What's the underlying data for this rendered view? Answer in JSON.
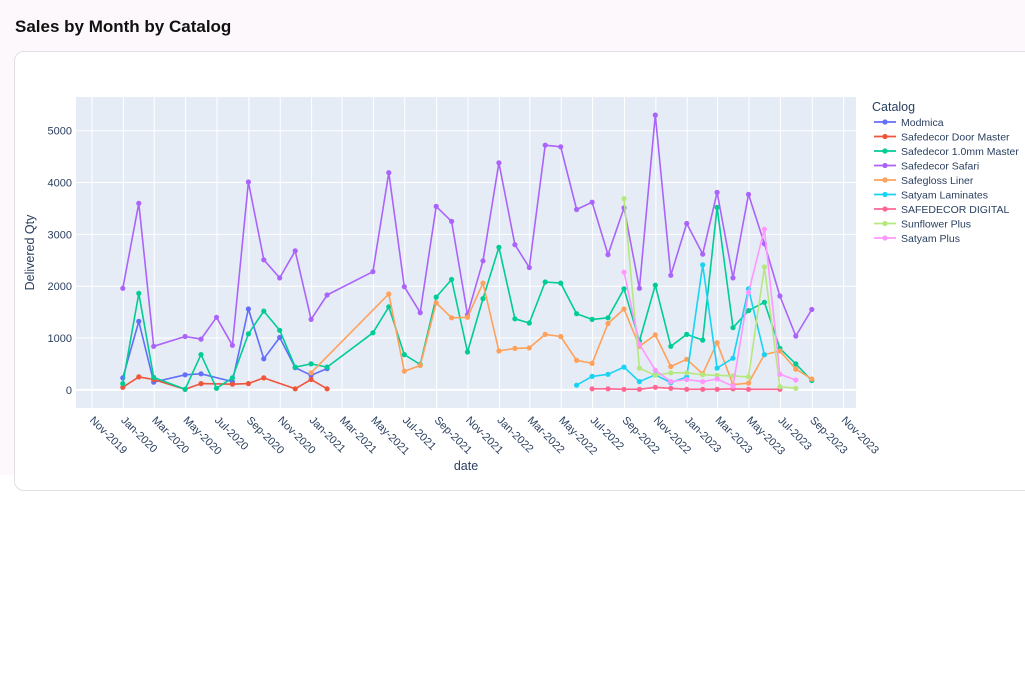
{
  "page": {
    "title": "Sales by Month by Catalog"
  },
  "chart_data": {
    "type": "line",
    "title": "",
    "xlabel": "date",
    "ylabel": "Delivered Qty",
    "xlim": [
      "2019-10-01",
      "2023-11-25"
    ],
    "ylim": [
      -350,
      5650
    ],
    "yticks": [
      0,
      1000,
      2000,
      3000,
      4000,
      5000
    ],
    "xticks": [
      {
        "date": "2019-11-01",
        "label": "Nov-2019"
      },
      {
        "date": "2020-01-01",
        "label": "Jan-2020"
      },
      {
        "date": "2020-03-01",
        "label": "Mar-2020"
      },
      {
        "date": "2020-05-01",
        "label": "May-2020"
      },
      {
        "date": "2020-07-01",
        "label": "Jul-2020"
      },
      {
        "date": "2020-09-01",
        "label": "Sep-2020"
      },
      {
        "date": "2020-11-01",
        "label": "Nov-2020"
      },
      {
        "date": "2021-01-01",
        "label": "Jan-2021"
      },
      {
        "date": "2021-03-01",
        "label": "Mar-2021"
      },
      {
        "date": "2021-05-01",
        "label": "May-2021"
      },
      {
        "date": "2021-07-01",
        "label": "Jul-2021"
      },
      {
        "date": "2021-09-01",
        "label": "Sep-2021"
      },
      {
        "date": "2021-11-01",
        "label": "Nov-2021"
      },
      {
        "date": "2022-01-01",
        "label": "Jan-2022"
      },
      {
        "date": "2022-03-01",
        "label": "Mar-2022"
      },
      {
        "date": "2022-05-01",
        "label": "May-2022"
      },
      {
        "date": "2022-07-01",
        "label": "Jul-2022"
      },
      {
        "date": "2022-09-01",
        "label": "Sep-2022"
      },
      {
        "date": "2022-11-01",
        "label": "Nov-2022"
      },
      {
        "date": "2023-01-01",
        "label": "Jan-2023"
      },
      {
        "date": "2023-03-01",
        "label": "Mar-2023"
      },
      {
        "date": "2023-05-01",
        "label": "May-2023"
      },
      {
        "date": "2023-07-01",
        "label": "Jul-2023"
      },
      {
        "date": "2023-09-01",
        "label": "Sep-2023"
      },
      {
        "date": "2023-11-01",
        "label": "Nov-2023"
      }
    ],
    "grid": true,
    "legend_title": "Catalog",
    "legend_position": "right",
    "series": [
      {
        "name": "Modmica",
        "color": "#636efa",
        "points": [
          [
            "2019-12-31",
            230
          ],
          [
            "2020-01-31",
            1320
          ],
          [
            "2020-02-29",
            150
          ],
          [
            "2020-04-30",
            290
          ],
          [
            "2020-05-31",
            310
          ],
          [
            "2020-07-31",
            160
          ],
          [
            "2020-08-31",
            1560
          ],
          [
            "2020-09-30",
            600
          ],
          [
            "2020-10-31",
            1010
          ],
          [
            "2020-11-30",
            430
          ],
          [
            "2020-12-31",
            280
          ],
          [
            "2021-01-31",
            410
          ]
        ]
      },
      {
        "name": "Safedecor Door Master",
        "color": "#EF553B",
        "points": [
          [
            "2019-12-31",
            50
          ],
          [
            "2020-01-31",
            250
          ],
          [
            "2020-02-29",
            200
          ],
          [
            "2020-04-30",
            10
          ],
          [
            "2020-05-31",
            120
          ],
          [
            "2020-07-31",
            110
          ],
          [
            "2020-08-31",
            120
          ],
          [
            "2020-09-30",
            230
          ],
          [
            "2020-11-30",
            20
          ],
          [
            "2020-12-31",
            200
          ],
          [
            "2021-01-31",
            20
          ]
        ]
      },
      {
        "name": "Safedecor 1.0mm Master",
        "color": "#00cc96",
        "points": [
          [
            "2019-12-31",
            120
          ],
          [
            "2020-01-31",
            1860
          ],
          [
            "2020-02-29",
            240
          ],
          [
            "2020-04-30",
            10
          ],
          [
            "2020-05-31",
            680
          ],
          [
            "2020-06-30",
            30
          ],
          [
            "2020-07-31",
            230
          ],
          [
            "2020-08-31",
            1080
          ],
          [
            "2020-09-30",
            1520
          ],
          [
            "2020-10-31",
            1150
          ],
          [
            "2020-11-30",
            440
          ],
          [
            "2020-12-31",
            500
          ],
          [
            "2021-01-31",
            440
          ],
          [
            "2021-04-30",
            1100
          ],
          [
            "2021-05-31",
            1600
          ],
          [
            "2021-06-30",
            680
          ],
          [
            "2021-07-31",
            490
          ],
          [
            "2021-08-31",
            1790
          ],
          [
            "2021-09-30",
            2130
          ],
          [
            "2021-10-31",
            730
          ],
          [
            "2021-11-30",
            1760
          ],
          [
            "2021-12-31",
            2750
          ],
          [
            "2022-01-31",
            1370
          ],
          [
            "2022-02-28",
            1290
          ],
          [
            "2022-03-31",
            2080
          ],
          [
            "2022-04-30",
            2060
          ],
          [
            "2022-05-31",
            1470
          ],
          [
            "2022-06-30",
            1360
          ],
          [
            "2022-07-31",
            1390
          ],
          [
            "2022-08-31",
            1950
          ],
          [
            "2022-09-30",
            940
          ],
          [
            "2022-10-31",
            2020
          ],
          [
            "2022-11-30",
            840
          ],
          [
            "2022-12-31",
            1070
          ],
          [
            "2023-01-31",
            960
          ],
          [
            "2023-02-28",
            3520
          ],
          [
            "2023-03-31",
            1200
          ],
          [
            "2023-04-30",
            1530
          ],
          [
            "2023-05-31",
            1690
          ],
          [
            "2023-06-30",
            800
          ],
          [
            "2023-07-31",
            500
          ],
          [
            "2023-08-31",
            180
          ]
        ]
      },
      {
        "name": "Safedecor Safari",
        "color": "#ab63fa",
        "points": [
          [
            "2019-12-31",
            1960
          ],
          [
            "2020-01-31",
            3600
          ],
          [
            "2020-02-29",
            840
          ],
          [
            "2020-04-30",
            1030
          ],
          [
            "2020-05-31",
            980
          ],
          [
            "2020-06-30",
            1400
          ],
          [
            "2020-07-31",
            860
          ],
          [
            "2020-08-31",
            4010
          ],
          [
            "2020-09-30",
            2510
          ],
          [
            "2020-10-31",
            2160
          ],
          [
            "2020-11-30",
            2680
          ],
          [
            "2020-12-31",
            1360
          ],
          [
            "2021-01-31",
            1830
          ],
          [
            "2021-04-30",
            2280
          ],
          [
            "2021-05-31",
            4190
          ],
          [
            "2021-06-30",
            1990
          ],
          [
            "2021-07-31",
            1490
          ],
          [
            "2021-08-31",
            3540
          ],
          [
            "2021-09-30",
            3250
          ],
          [
            "2021-10-31",
            1450
          ],
          [
            "2021-11-30",
            2490
          ],
          [
            "2021-12-31",
            4380
          ],
          [
            "2022-01-31",
            2800
          ],
          [
            "2022-02-28",
            2360
          ],
          [
            "2022-03-31",
            4720
          ],
          [
            "2022-04-30",
            4690
          ],
          [
            "2022-05-31",
            3480
          ],
          [
            "2022-06-30",
            3620
          ],
          [
            "2022-07-31",
            2610
          ],
          [
            "2022-08-31",
            3510
          ],
          [
            "2022-09-30",
            1960
          ],
          [
            "2022-10-31",
            5300
          ],
          [
            "2022-11-30",
            2210
          ],
          [
            "2022-12-31",
            3210
          ],
          [
            "2023-01-31",
            2620
          ],
          [
            "2023-02-28",
            3810
          ],
          [
            "2023-03-31",
            2160
          ],
          [
            "2023-04-30",
            3770
          ],
          [
            "2023-05-31",
            2820
          ],
          [
            "2023-06-30",
            1810
          ],
          [
            "2023-07-31",
            1040
          ],
          [
            "2023-08-31",
            1550
          ]
        ]
      },
      {
        "name": "Safegloss Liner",
        "color": "#FFA15A",
        "points": [
          [
            "2020-12-31",
            330
          ],
          [
            "2021-05-31",
            1850
          ],
          [
            "2021-06-30",
            360
          ],
          [
            "2021-07-31",
            470
          ],
          [
            "2021-08-31",
            1680
          ],
          [
            "2021-09-30",
            1390
          ],
          [
            "2021-10-31",
            1400
          ],
          [
            "2021-11-30",
            2060
          ],
          [
            "2021-12-31",
            750
          ],
          [
            "2022-01-31",
            800
          ],
          [
            "2022-02-28",
            810
          ],
          [
            "2022-03-31",
            1070
          ],
          [
            "2022-04-30",
            1030
          ],
          [
            "2022-05-31",
            570
          ],
          [
            "2022-06-30",
            510
          ],
          [
            "2022-07-31",
            1280
          ],
          [
            "2022-08-31",
            1560
          ],
          [
            "2022-09-30",
            840
          ],
          [
            "2022-10-31",
            1060
          ],
          [
            "2022-11-30",
            450
          ],
          [
            "2022-12-31",
            590
          ],
          [
            "2023-01-31",
            310
          ],
          [
            "2023-02-28",
            910
          ],
          [
            "2023-03-31",
            100
          ],
          [
            "2023-04-30",
            130
          ],
          [
            "2023-05-31",
            680
          ],
          [
            "2023-06-30",
            750
          ],
          [
            "2023-07-31",
            400
          ],
          [
            "2023-08-31",
            210
          ]
        ]
      },
      {
        "name": "Satyam Laminates",
        "color": "#19d3f3",
        "points": [
          [
            "2022-05-31",
            90
          ],
          [
            "2022-06-30",
            260
          ],
          [
            "2022-07-31",
            300
          ],
          [
            "2022-08-31",
            440
          ],
          [
            "2022-09-30",
            160
          ],
          [
            "2022-10-31",
            290
          ],
          [
            "2022-11-30",
            140
          ],
          [
            "2022-12-31",
            250
          ],
          [
            "2023-01-31",
            2410
          ],
          [
            "2023-02-28",
            420
          ],
          [
            "2023-03-31",
            610
          ],
          [
            "2023-04-30",
            1950
          ],
          [
            "2023-05-31",
            680
          ]
        ]
      },
      {
        "name": "SAFEDECOR DIGITAL",
        "color": "#FF6692",
        "points": [
          [
            "2022-06-30",
            20
          ],
          [
            "2022-07-31",
            20
          ],
          [
            "2022-08-31",
            10
          ],
          [
            "2022-09-30",
            10
          ],
          [
            "2022-10-31",
            50
          ],
          [
            "2022-11-30",
            30
          ],
          [
            "2022-12-31",
            10
          ],
          [
            "2023-01-31",
            10
          ],
          [
            "2023-02-28",
            10
          ],
          [
            "2023-03-31",
            20
          ],
          [
            "2023-04-30",
            10
          ],
          [
            "2023-06-30",
            10
          ]
        ]
      },
      {
        "name": "Sunflower Plus",
        "color": "#B6E880",
        "points": [
          [
            "2022-08-31",
            3690
          ],
          [
            "2022-09-30",
            420
          ],
          [
            "2022-10-31",
            280
          ],
          [
            "2022-11-30",
            330
          ],
          [
            "2022-12-31",
            330
          ],
          [
            "2023-01-31",
            290
          ],
          [
            "2023-02-28",
            280
          ],
          [
            "2023-03-31",
            270
          ],
          [
            "2023-04-30",
            250
          ],
          [
            "2023-05-31",
            2370
          ],
          [
            "2023-06-30",
            60
          ],
          [
            "2023-07-31",
            30
          ]
        ]
      },
      {
        "name": "Satyam Plus",
        "color": "#FF97FF",
        "points": [
          [
            "2022-08-31",
            2270
          ],
          [
            "2022-09-30",
            880
          ],
          [
            "2022-10-31",
            380
          ],
          [
            "2022-11-30",
            160
          ],
          [
            "2022-12-31",
            200
          ],
          [
            "2023-01-31",
            160
          ],
          [
            "2023-02-28",
            210
          ],
          [
            "2023-03-31",
            70
          ],
          [
            "2023-04-30",
            1880
          ],
          [
            "2023-05-31",
            3100
          ],
          [
            "2023-06-30",
            300
          ],
          [
            "2023-07-31",
            190
          ]
        ]
      }
    ]
  }
}
